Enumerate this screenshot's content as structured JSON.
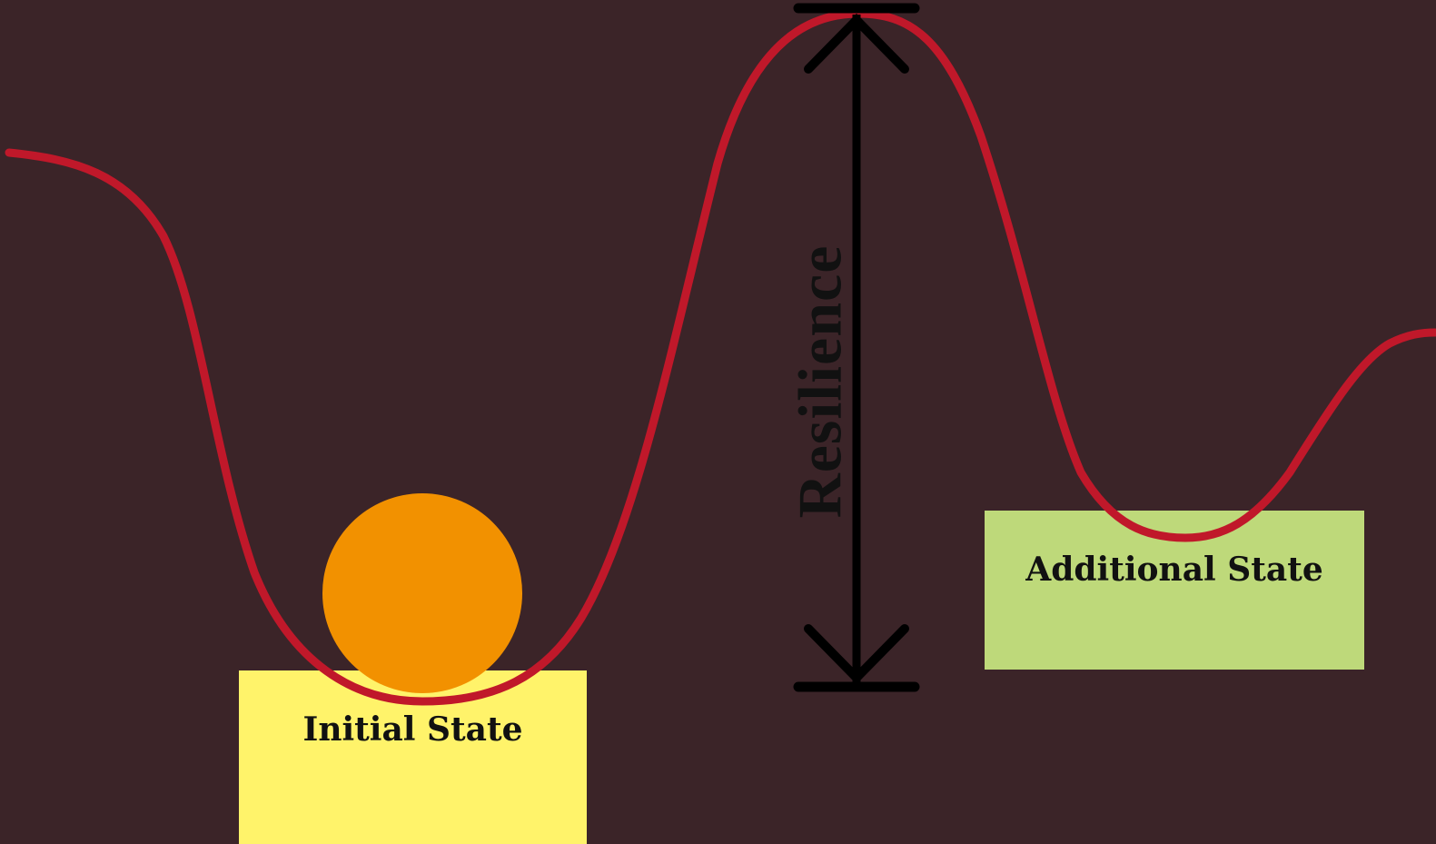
{
  "colors": {
    "background": "#3b2428",
    "landscape_curve": "#c0182a",
    "ball": "#f29100",
    "initial_state_box": "#fff36a",
    "additional_state_box": "#bed97a",
    "arrow": "#000000"
  },
  "labels": {
    "initial_state": "Initial State",
    "additional_state": "Additional State",
    "resilience": "Resilience"
  }
}
